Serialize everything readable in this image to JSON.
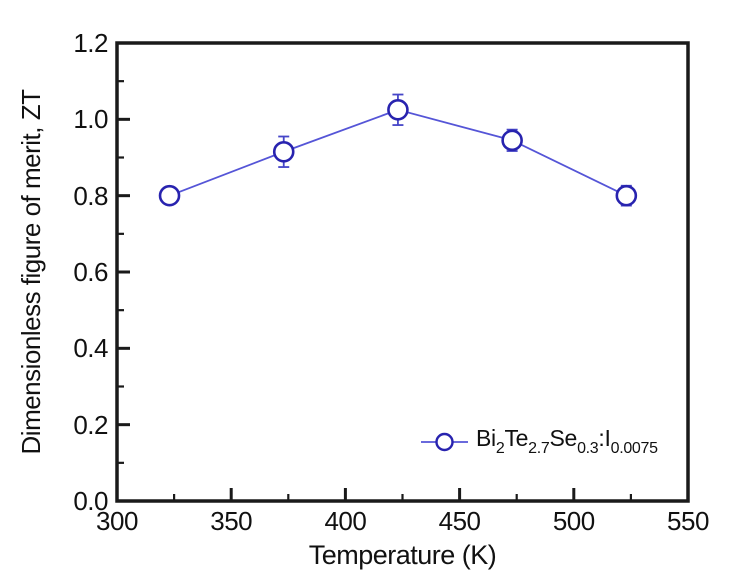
{
  "figure": {
    "background": "#ffffff",
    "frame_color": "#1a1a1a",
    "text_color": "#111111"
  },
  "chart_data": {
    "type": "line",
    "title": "",
    "xlabel": "Temperature (K)",
    "ylabel": "Dimensionless figure of merit, ZT",
    "xlim": [
      300,
      550
    ],
    "ylim": [
      0.0,
      1.2
    ],
    "x_major_ticks": [
      300,
      350,
      400,
      450,
      500,
      550
    ],
    "x_minor_ticks": [
      325,
      375,
      425,
      475,
      525
    ],
    "y_major_ticks": [
      0.0,
      0.2,
      0.4,
      0.6,
      0.8,
      1.0,
      1.2
    ],
    "y_minor_ticks": [
      0.1,
      0.3,
      0.5,
      0.7,
      0.9,
      1.1
    ],
    "y_tick_decimals": 1,
    "grid": false,
    "legend_position": "lower-right",
    "series": [
      {
        "name": "Bi2Te2.7Se0.3:I0.0075",
        "label_rich": [
          {
            "t": "Bi"
          },
          {
            "t": "2",
            "sub": true
          },
          {
            "t": "Te"
          },
          {
            "t": "2.7",
            "sub": true
          },
          {
            "t": "Se"
          },
          {
            "t": "0.3",
            "sub": true
          },
          {
            "t": ":I"
          },
          {
            "t": "0.0075",
            "sub": true
          }
        ],
        "marker": "open-circle",
        "x": [
          323,
          373,
          423,
          473,
          523
        ],
        "y": [
          0.8,
          0.915,
          1.025,
          0.945,
          0.8
        ],
        "y_err": [
          0.01,
          0.04,
          0.04,
          0.028,
          0.026
        ],
        "line_color": "#5555d7",
        "marker_color": "#2823af",
        "error_color": "#4646c8"
      }
    ]
  }
}
